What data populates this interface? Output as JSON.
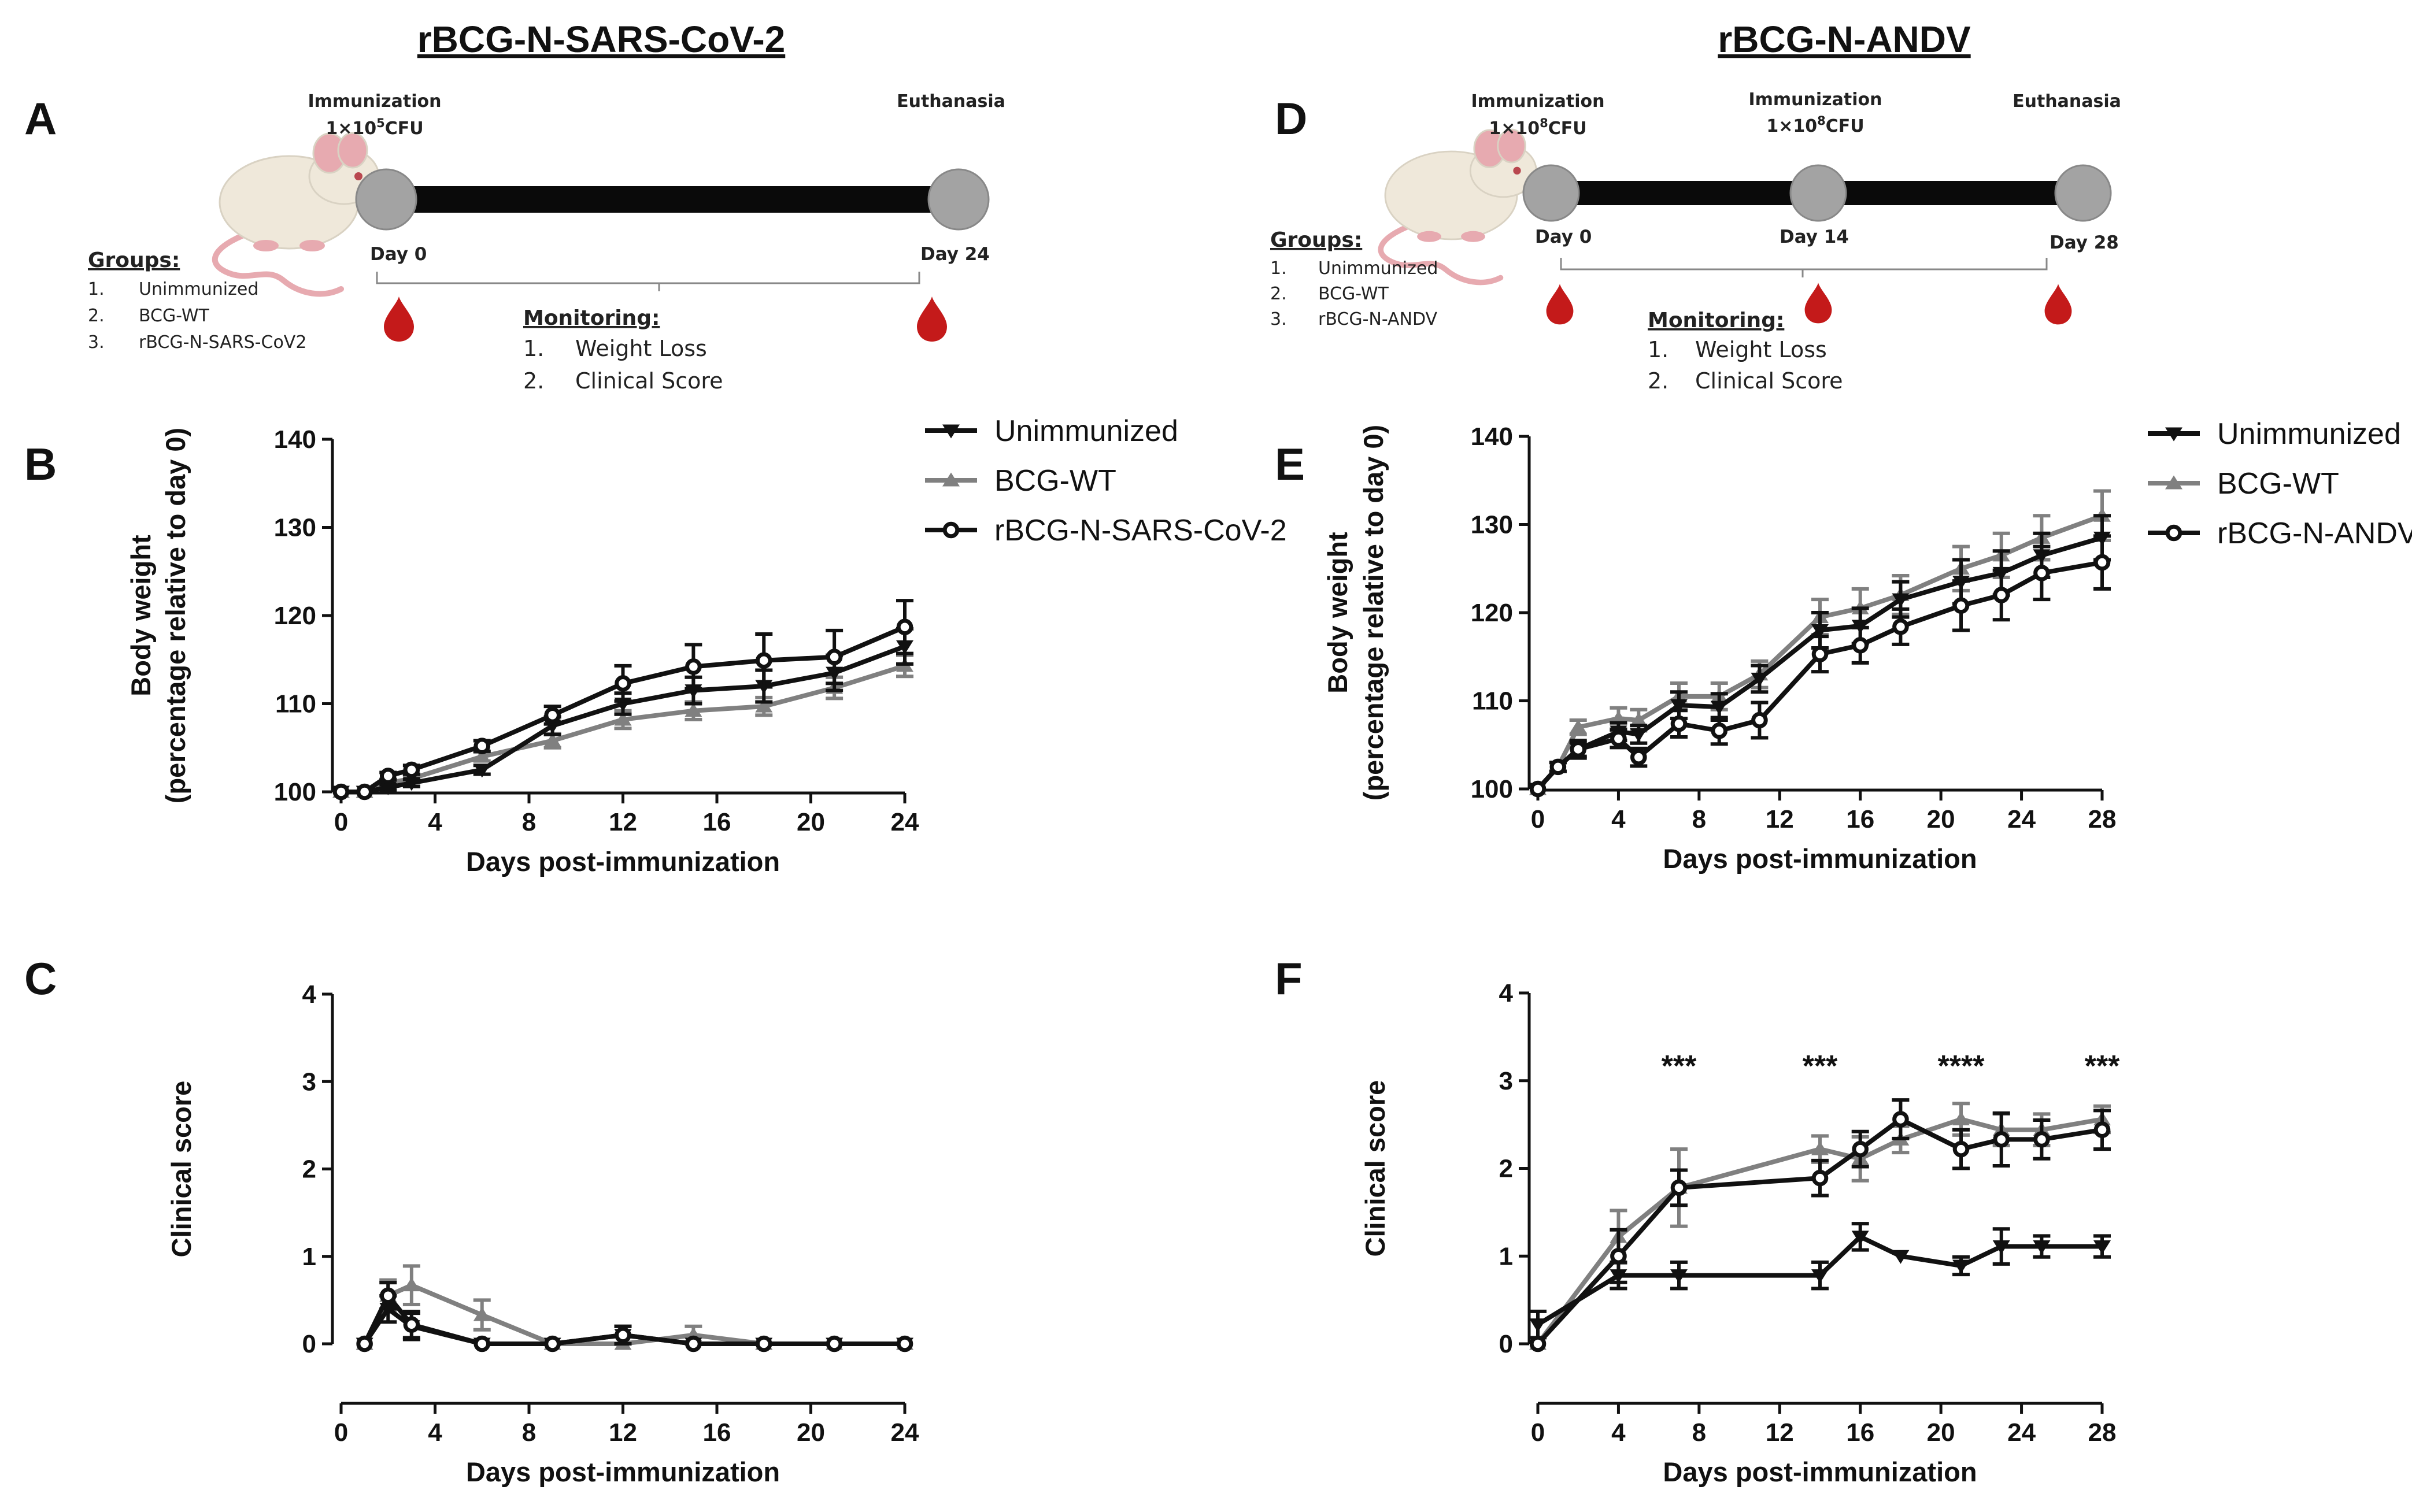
{
  "left_title": "rBCG-N-SARS-CoV-2",
  "right_title": "rBCG-N-ANDV",
  "panel_labels": {
    "A": "A",
    "B": "B",
    "C": "C",
    "D": "D",
    "E": "E",
    "F": "F"
  },
  "timeline_A": {
    "immunization": "Immunization",
    "dose_base": "1×10",
    "dose_exp": "5",
    "dose_unit": "CFU",
    "euthanasia": "Euthanasia",
    "day_start": "Day 0",
    "day_end": "Day 24",
    "groups_title": "Groups:",
    "groups": [
      {
        "num": "1.",
        "name": "Unimmunized"
      },
      {
        "num": "2.",
        "name": "BCG-WT"
      },
      {
        "num": "3.",
        "name": "rBCG-N-SARS-CoV2"
      }
    ],
    "monitoring_title": "Monitoring:",
    "monitoring": [
      {
        "num": "1.",
        "name": "Weight Loss"
      },
      {
        "num": "2.",
        "name": "Clinical Score"
      }
    ]
  },
  "timeline_D": {
    "immunization_1": "Immunization",
    "immunization_2": "Immunization",
    "dose_base": "1×10",
    "dose_exp": "8",
    "dose_unit": "CFU",
    "euthanasia": "Euthanasia",
    "day_start": "Day 0",
    "day_mid": "Day 14",
    "day_end": "Day 28",
    "groups_title": "Groups:",
    "groups": [
      {
        "num": "1.",
        "name": "Unimmunized"
      },
      {
        "num": "2.",
        "name": "BCG-WT"
      },
      {
        "num": "3.",
        "name": "rBCG-N-ANDV"
      }
    ],
    "monitoring_title": "Monitoring:",
    "monitoring": [
      {
        "num": "1.",
        "name": "Weight Loss"
      },
      {
        "num": "2.",
        "name": "Clinical Score"
      }
    ]
  },
  "colors": {
    "unimmunized": "#111111",
    "bcg_wt": "#808080",
    "rbcg": "#111111",
    "node": "#a3a3a3",
    "blood": "#c41a1a",
    "mouse_body": "#efe8da",
    "mouse_pink": "#e7aab0"
  },
  "chart_data": [
    {
      "id": "B",
      "type": "line",
      "title": "",
      "xlabel": "Days post-immunization",
      "ylabel": "Body weight",
      "ylabel2": "(percentage relative to day 0)",
      "xlim": [
        0,
        24
      ],
      "ylim": [
        100,
        140
      ],
      "xticks": [
        0,
        4,
        8,
        12,
        16,
        20,
        24
      ],
      "yticks": [
        100,
        110,
        120,
        130,
        140
      ],
      "legend": "top-right",
      "series": [
        {
          "name": "Unimmunized",
          "marker": "tri-down",
          "x": [
            0,
            1,
            2,
            3,
            6,
            9,
            12,
            15,
            18,
            21,
            24
          ],
          "y": [
            100,
            100,
            100.5,
            101,
            102.5,
            107.5,
            110,
            111.5,
            112,
            113.5,
            116.5
          ],
          "err": [
            0,
            0,
            0.3,
            0.4,
            0.5,
            1,
            1.2,
            1.5,
            1.8,
            2,
            2
          ]
        },
        {
          "name": "BCG-WT",
          "marker": "tri-up",
          "x": [
            0,
            1,
            2,
            3,
            6,
            9,
            12,
            15,
            18,
            21,
            24
          ],
          "y": [
            100,
            100,
            101,
            101.5,
            104,
            105.8,
            108.2,
            109.2,
            109.7,
            111.8,
            114.3
          ],
          "err": [
            0,
            0,
            0.3,
            0.4,
            0.5,
            0.8,
            1,
            1,
            1,
            1.2,
            1.2
          ]
        },
        {
          "name": "rBCG-N-SARS-CoV-2",
          "marker": "circle",
          "x": [
            0,
            1,
            2,
            3,
            6,
            9,
            12,
            15,
            18,
            21,
            24
          ],
          "y": [
            100,
            100,
            101.8,
            102.5,
            105.2,
            108.7,
            112.3,
            114.2,
            114.9,
            115.3,
            118.7
          ],
          "err": [
            0,
            0,
            0.4,
            0.5,
            0.6,
            1,
            2,
            2.5,
            3,
            3,
            3
          ]
        }
      ]
    },
    {
      "id": "C",
      "type": "line",
      "title": "",
      "xlabel": "Days post-immunization",
      "ylabel": "Clinical score",
      "xlim": [
        0,
        24
      ],
      "ylim": [
        0,
        4
      ],
      "xticks": [
        0,
        4,
        8,
        12,
        16,
        20,
        24
      ],
      "yticks": [
        0,
        1,
        2,
        3,
        4
      ],
      "series": [
        {
          "name": "Unimmunized",
          "marker": "tri-down",
          "x": [
            1,
            2,
            3,
            6,
            9,
            12,
            15,
            18,
            21,
            24
          ],
          "y": [
            0,
            0.4,
            0.2,
            0,
            0,
            0.1,
            0,
            0,
            0,
            0
          ],
          "err": [
            0,
            0.15,
            0.15,
            0,
            0,
            0.1,
            0,
            0,
            0,
            0
          ]
        },
        {
          "name": "BCG-WT",
          "marker": "tri-up",
          "x": [
            1,
            2,
            3,
            6,
            9,
            12,
            15,
            18,
            21,
            24
          ],
          "y": [
            0,
            0.55,
            0.67,
            0.33,
            0,
            0,
            0.1,
            0,
            0,
            0
          ],
          "err": [
            0,
            0.18,
            0.22,
            0.17,
            0,
            0,
            0.1,
            0,
            0,
            0
          ]
        },
        {
          "name": "rBCG-N-SARS-CoV-2",
          "marker": "circle",
          "x": [
            1,
            2,
            3,
            6,
            9,
            12,
            15,
            18,
            21,
            24
          ],
          "y": [
            0,
            0.55,
            0.22,
            0,
            0,
            0.1,
            0,
            0,
            0,
            0
          ],
          "err": [
            0,
            0.15,
            0.15,
            0,
            0,
            0.1,
            0,
            0,
            0,
            0
          ]
        }
      ]
    },
    {
      "id": "E",
      "type": "line",
      "title": "",
      "xlabel": "Days post-immunization",
      "ylabel": "Body weight",
      "ylabel2": "(percentage relative to day 0)",
      "xlim": [
        0,
        28
      ],
      "ylim": [
        100,
        140
      ],
      "xticks": [
        0,
        4,
        8,
        12,
        16,
        20,
        24,
        28
      ],
      "yticks": [
        100,
        110,
        120,
        130,
        140
      ],
      "legend": "top-right",
      "series": [
        {
          "name": "Unimmunized",
          "marker": "tri-down",
          "x": [
            0,
            1,
            2,
            4,
            5,
            7,
            9,
            11,
            14,
            16,
            18,
            21,
            23,
            25,
            28
          ],
          "y": [
            100,
            102.5,
            104.5,
            106.5,
            106.2,
            109.5,
            109.3,
            112.5,
            118,
            118.5,
            121.5,
            123.5,
            124.5,
            126.5,
            128.5
          ],
          "err": [
            0,
            0.5,
            0.8,
            1,
            1,
            1.5,
            1.5,
            1.5,
            2,
            2,
            2,
            2.5,
            2.5,
            2.5,
            2.5
          ]
        },
        {
          "name": "BCG-WT",
          "marker": "tri-up",
          "x": [
            0,
            1,
            2,
            4,
            5,
            7,
            9,
            11,
            14,
            16,
            18,
            21,
            23,
            25,
            28
          ],
          "y": [
            100,
            102.5,
            107,
            108,
            107.8,
            110.5,
            110.5,
            113,
            119.5,
            120.5,
            122,
            125,
            126.5,
            128.5,
            131
          ],
          "err": [
            0,
            0.5,
            0.8,
            1.2,
            1.2,
            1.5,
            1.5,
            1.5,
            2,
            2.2,
            2.2,
            2.5,
            2.5,
            2.5,
            2.8
          ]
        },
        {
          "name": "rBCG-N-ANDV",
          "marker": "circle",
          "x": [
            0,
            1,
            2,
            4,
            5,
            7,
            9,
            11,
            14,
            16,
            18,
            21,
            23,
            25,
            28
          ],
          "y": [
            100,
            102.5,
            104.5,
            105.7,
            103.6,
            107.4,
            106.6,
            107.8,
            115.3,
            116.3,
            118.4,
            120.8,
            122,
            124.5,
            125.7
          ],
          "err": [
            0,
            0.5,
            1,
            1,
            1,
            1.5,
            1.5,
            2,
            2,
            2,
            2,
            2.8,
            2.8,
            3,
            3
          ]
        }
      ]
    },
    {
      "id": "F",
      "type": "line",
      "title": "",
      "xlabel": "Days post-immunization",
      "ylabel": "Clinical score",
      "xlim": [
        0,
        28
      ],
      "ylim": [
        0,
        4
      ],
      "xticks": [
        0,
        4,
        8,
        12,
        16,
        20,
        24,
        28
      ],
      "yticks": [
        0,
        1,
        2,
        3,
        4
      ],
      "annotations": [
        {
          "x": 7,
          "y": 3.25,
          "text": "***"
        },
        {
          "x": 14,
          "y": 3.25,
          "text": "***"
        },
        {
          "x": 21,
          "y": 3.25,
          "text": "****"
        },
        {
          "x": 28,
          "y": 3.25,
          "text": "***"
        }
      ],
      "series": [
        {
          "name": "Unimmunized",
          "marker": "tri-down",
          "x": [
            0,
            4,
            7,
            14,
            16,
            18,
            21,
            23,
            25,
            28
          ],
          "y": [
            0.22,
            0.78,
            0.78,
            0.78,
            1.22,
            1,
            0.89,
            1.11,
            1.11,
            1.11
          ],
          "err": [
            0.15,
            0.15,
            0.15,
            0.15,
            0.15,
            0,
            0.1,
            0.2,
            0.12,
            0.12
          ]
        },
        {
          "name": "BCG-WT",
          "marker": "tri-up",
          "x": [
            0,
            4,
            7,
            14,
            16,
            18,
            21,
            23,
            25,
            28
          ],
          "y": [
            0,
            1.22,
            1.78,
            2.22,
            2.11,
            2.33,
            2.56,
            2.44,
            2.44,
            2.56
          ],
          "err": [
            0,
            0.3,
            0.44,
            0.15,
            0.25,
            0.15,
            0.18,
            0.18,
            0.18,
            0.15
          ]
        },
        {
          "name": "rBCG-N-ANDV",
          "marker": "circle",
          "x": [
            0,
            4,
            7,
            14,
            16,
            18,
            21,
            23,
            25,
            28
          ],
          "y": [
            0,
            1,
            1.78,
            1.89,
            2.22,
            2.56,
            2.22,
            2.33,
            2.33,
            2.44
          ],
          "err": [
            0,
            0.3,
            0.2,
            0.2,
            0.2,
            0.22,
            0.22,
            0.3,
            0.22,
            0.22
          ]
        }
      ]
    }
  ]
}
